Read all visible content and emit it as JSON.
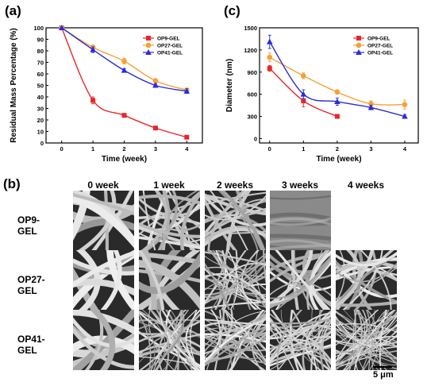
{
  "panels": {
    "a": "(a)",
    "b": "(b)",
    "c": "(c)"
  },
  "chart_data": [
    {
      "type": "line",
      "panel": "(a)",
      "xlabel": "Time (week)",
      "ylabel": "Residual Mass Percentage (%)",
      "x": [
        0,
        1,
        2,
        3,
        4
      ],
      "xticks": [
        "0",
        "1",
        "2",
        "3",
        "4"
      ],
      "yticks": [
        "0",
        "10",
        "20",
        "30",
        "40",
        "50",
        "60",
        "70",
        "80",
        "90",
        "100"
      ],
      "xlim": [
        -0.5,
        4.5
      ],
      "ylim": [
        0,
        100
      ],
      "legend": "top-right",
      "series": [
        {
          "name": "OP9-GEL",
          "color": "#e8262b",
          "marker": "square",
          "values": [
            100,
            37,
            24,
            13,
            5
          ],
          "errors": [
            0,
            3,
            1.5,
            1,
            0.5
          ]
        },
        {
          "name": "OP27-GEL",
          "color": "#f7a035",
          "marker": "circle",
          "values": [
            100,
            83,
            71,
            54,
            46
          ],
          "errors": [
            0,
            2,
            2.5,
            2,
            1.5
          ]
        },
        {
          "name": "OP41-GEL",
          "color": "#2b2bd9",
          "marker": "triangle",
          "values": [
            100,
            81,
            63,
            50,
            45
          ],
          "errors": [
            0,
            2.5,
            1.5,
            1.5,
            2
          ]
        }
      ]
    },
    {
      "type": "line",
      "panel": "(c)",
      "xlabel": "Time (week)",
      "ylabel": "Diameter (nm)",
      "x": [
        0,
        1,
        2,
        3,
        4
      ],
      "xticks": [
        "0",
        "1",
        "2",
        "3",
        "4"
      ],
      "yticks": [
        "0",
        "300",
        "600",
        "900",
        "1200",
        "1500"
      ],
      "xlim": [
        -0.3,
        4.4
      ],
      "ylim": [
        -60,
        1500
      ],
      "legend": "top-right",
      "series": [
        {
          "name": "OP9-GEL",
          "color": "#e8262b",
          "marker": "square",
          "x": [
            0,
            1,
            2
          ],
          "values": [
            950,
            510,
            300
          ],
          "errors": [
            40,
            80,
            15
          ]
        },
        {
          "name": "OP27-GEL",
          "color": "#f7a035",
          "marker": "circle",
          "x": [
            0,
            1,
            2,
            3,
            4
          ],
          "values": [
            1100,
            850,
            630,
            470,
            460
          ],
          "errors": [
            60,
            40,
            30,
            40,
            60
          ]
        },
        {
          "name": "OP41-GEL",
          "color": "#2b2bd9",
          "marker": "triangle",
          "x": [
            0,
            1,
            2,
            3,
            4
          ],
          "values": [
            1310,
            600,
            500,
            420,
            300
          ],
          "errors": [
            90,
            60,
            50,
            30,
            25
          ]
        }
      ]
    }
  ],
  "sem": {
    "columns": [
      "0 week",
      "1 week",
      "2 weeks",
      "3 weeks",
      "4 weeks"
    ],
    "rows": [
      {
        "label": "OP9-GEL",
        "tiles": [
          "coarse",
          "medium",
          "medium",
          "film",
          "none"
        ]
      },
      {
        "label": "OP27-GEL",
        "tiles": [
          "coarse",
          "coarse",
          "fine",
          "medium",
          "medium"
        ]
      },
      {
        "label": "OP41-GEL",
        "tiles": [
          "coarse",
          "fine",
          "fine",
          "fine",
          "dense"
        ]
      }
    ],
    "scale_label": "5 μm"
  }
}
